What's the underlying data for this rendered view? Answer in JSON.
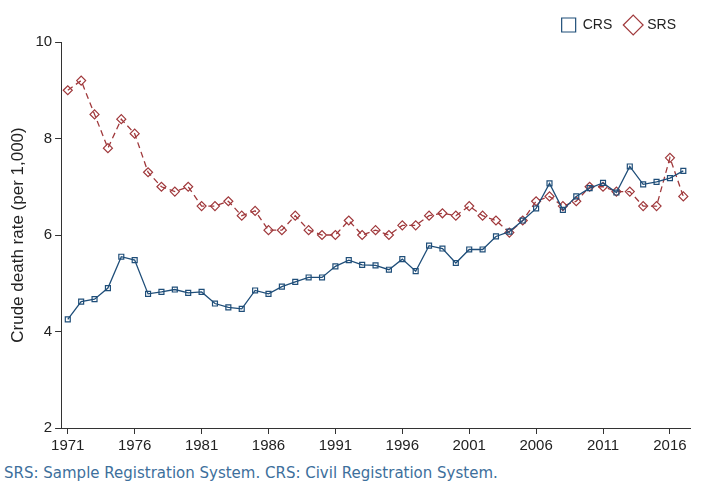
{
  "chart_data": {
    "type": "line",
    "y_label": "Crude death rate (per 1,000)",
    "note": "SRS: Sample Registration System. CRS: Civil Registration System.",
    "categories": [
      "1971",
      null,
      null,
      null,
      null,
      "1976",
      null,
      null,
      null,
      null,
      "1981",
      null,
      null,
      null,
      null,
      "1986",
      null,
      null,
      null,
      null,
      "1991",
      null,
      null,
      null,
      null,
      "1996",
      null,
      null,
      null,
      null,
      "2001",
      null,
      null,
      null,
      null,
      "2006",
      null,
      null,
      null,
      null,
      "2011",
      null,
      null,
      null,
      null,
      "2016",
      null
    ],
    "series": [
      {
        "name": "CRS",
        "color": "#1f4e79",
        "marker": "square",
        "line_style": "solid",
        "values": [
          4.25,
          4.62,
          4.67,
          4.9,
          5.55,
          5.48,
          4.78,
          4.82,
          4.87,
          4.8,
          4.82,
          4.58,
          4.5,
          4.47,
          4.85,
          4.78,
          4.93,
          5.03,
          5.12,
          5.12,
          5.35,
          5.48,
          5.38,
          5.37,
          5.28,
          5.5,
          5.25,
          5.78,
          5.72,
          5.42,
          5.7,
          5.7,
          5.97,
          6.07,
          6.3,
          6.55,
          7.07,
          6.52,
          6.8,
          6.97,
          7.08,
          6.88,
          7.42,
          7.05,
          7.1,
          7.18,
          7.33
        ]
      },
      {
        "name": "SRS",
        "color": "#a0393c",
        "marker": "diamond",
        "line_style": "dashed",
        "values": [
          9.0,
          9.2,
          8.5,
          7.8,
          8.4,
          8.1,
          7.3,
          7.0,
          6.9,
          7.0,
          6.6,
          6.6,
          6.7,
          6.4,
          6.5,
          6.1,
          6.1,
          6.4,
          6.1,
          6.0,
          6.0,
          6.3,
          6.0,
          6.1,
          6.0,
          6.2,
          6.2,
          6.4,
          6.45,
          6.4,
          6.6,
          6.4,
          6.3,
          6.05,
          6.3,
          6.7,
          6.8,
          6.6,
          6.7,
          7.0,
          7.0,
          6.9,
          6.9,
          6.6,
          6.6,
          7.6,
          6.8
        ]
      }
    ],
    "ylim": [
      2,
      10
    ],
    "yticks": [
      2,
      4,
      6,
      8,
      10
    ],
    "grid": false,
    "legend": "top-right"
  }
}
